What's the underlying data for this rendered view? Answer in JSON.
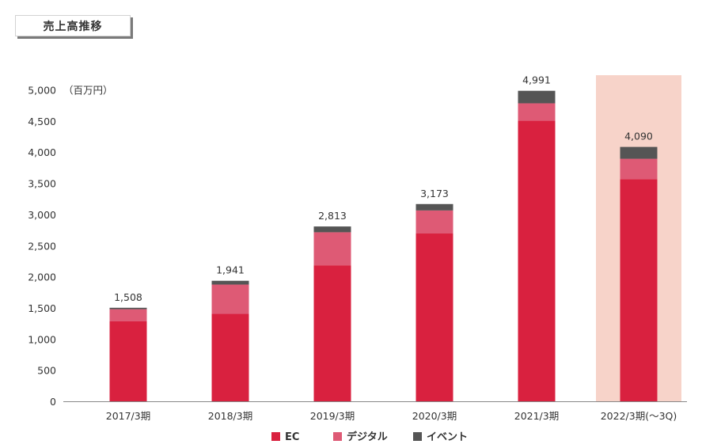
{
  "header": {
    "title": "売上高推移"
  },
  "colors": {
    "ec": "#d9213f",
    "digital": "#de5a75",
    "event": "#555555",
    "highlight": "#f7d3c9",
    "axis_text": "#333333",
    "axis_line": "#888888"
  },
  "legend": {
    "ec": "EC",
    "digital": "デジタル",
    "event": "イベント"
  },
  "chart_data": {
    "type": "bar",
    "stacked": true,
    "title": "売上高推移",
    "unit_label": "（百万円）",
    "ylim": [
      0,
      5000
    ],
    "y_ticks": [
      0,
      500,
      1000,
      1500,
      2000,
      2500,
      3000,
      3500,
      4000,
      4500,
      5000
    ],
    "y_tick_labels": [
      "0",
      "500",
      "1,000",
      "1,500",
      "2,000",
      "2,500",
      "3,000",
      "3,500",
      "4,000",
      "4,500",
      "5,000"
    ],
    "categories": [
      "2017/3期",
      "2018/3期",
      "2019/3期",
      "2020/3期",
      "2021/3期",
      "2022/3期(〜3Q)"
    ],
    "totals": [
      1508,
      1941,
      2813,
      3173,
      4991,
      4090
    ],
    "total_labels": [
      "1,508",
      "1,941",
      "2,813",
      "3,173",
      "4,991",
      "4,090"
    ],
    "highlight_category": "2022/3期(〜3Q)",
    "legend_position": "bottom",
    "grid": false,
    "series": [
      {
        "name": "EC",
        "key": "ec",
        "values": [
          1290,
          1410,
          2190,
          2700,
          4510,
          3570
        ]
      },
      {
        "name": "デジタル",
        "key": "digital",
        "values": [
          195,
          470,
          530,
          370,
          280,
          330
        ]
      },
      {
        "name": "イベント",
        "key": "event",
        "values": [
          23,
          61,
          93,
          103,
          201,
          190
        ]
      }
    ]
  }
}
